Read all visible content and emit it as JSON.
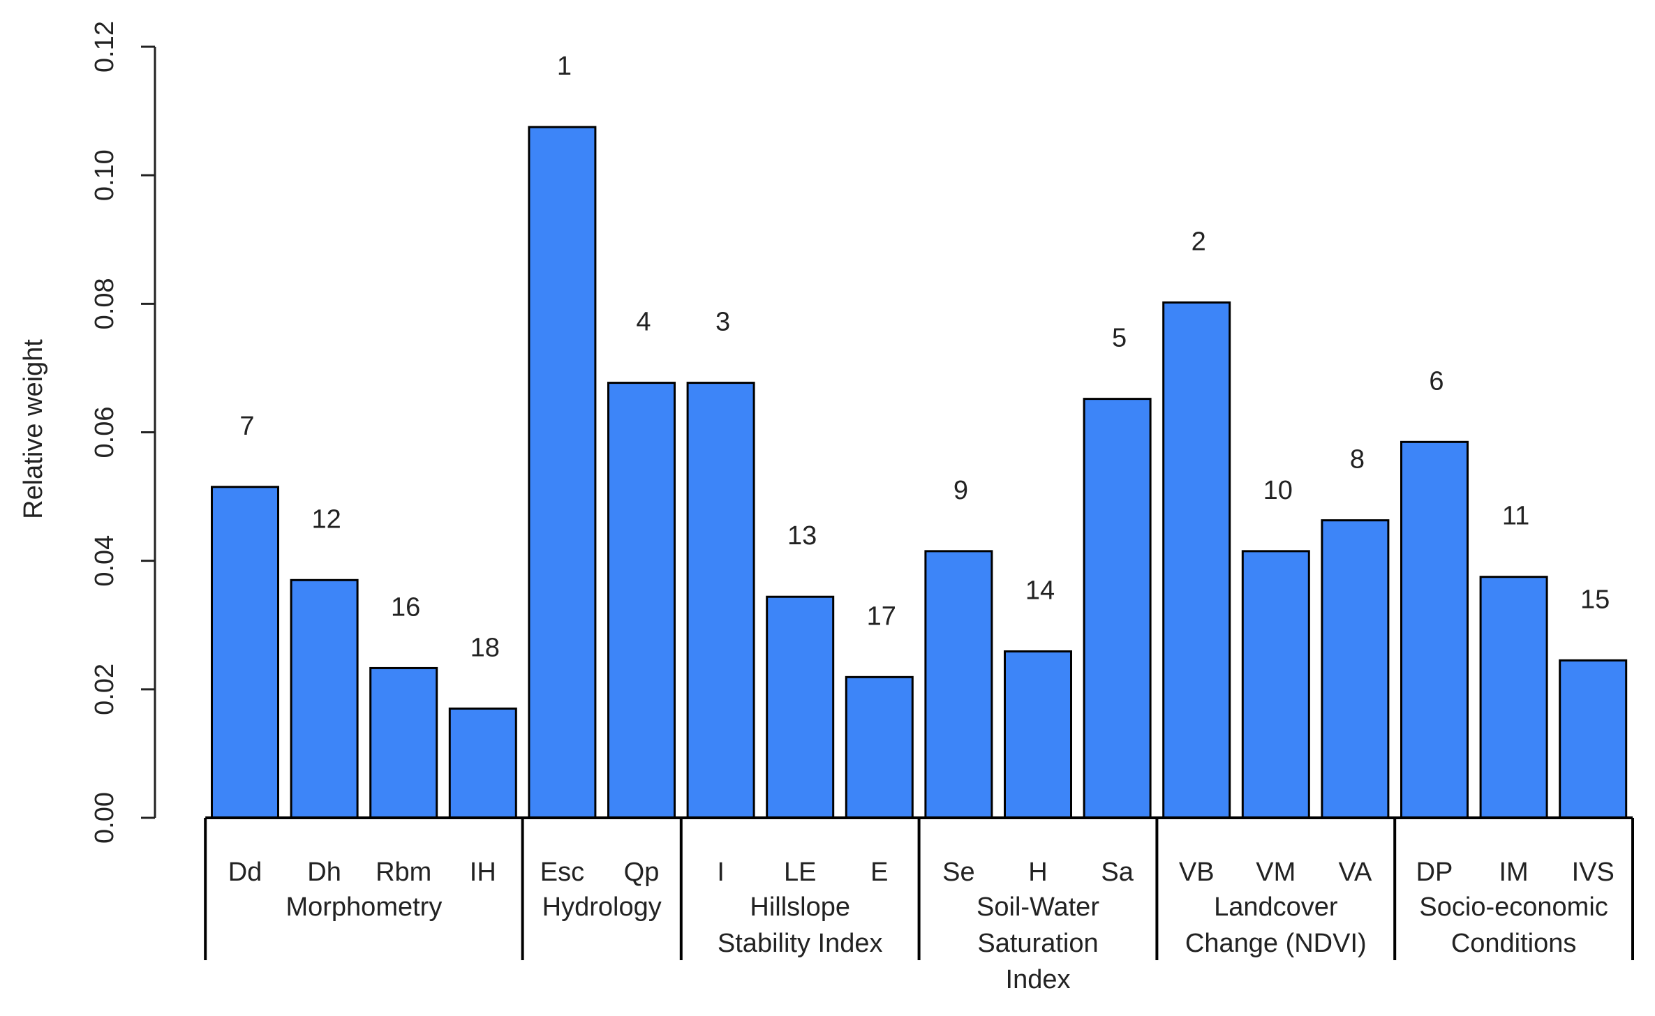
{
  "chart_data": {
    "type": "bar",
    "ylabel": "Relative weight",
    "ylim": [
      0,
      0.12
    ],
    "yticks": [
      "0.00",
      "0.02",
      "0.04",
      "0.06",
      "0.08",
      "0.10",
      "0.12"
    ],
    "bar_color": "#3d85f8",
    "categories": [
      "Dd",
      "Dh",
      "Rbm",
      "IH",
      "Esc",
      "Qp",
      "I",
      "LE",
      "E",
      "Se",
      "H",
      "Sa",
      "VB",
      "VM",
      "VA",
      "DP",
      "IM",
      "IVS"
    ],
    "values": [
      0.0515,
      0.037,
      0.0233,
      0.017,
      0.1075,
      0.0677,
      0.0677,
      0.0344,
      0.0219,
      0.0415,
      0.0259,
      0.0652,
      0.0802,
      0.0415,
      0.0463,
      0.0585,
      0.0375,
      0.0245
    ],
    "ranks": [
      "7",
      "12",
      "16",
      "18",
      "1",
      "4",
      "3",
      "13",
      "17",
      "9",
      "14",
      "5",
      "2",
      "10",
      "8",
      "6",
      "11",
      "15"
    ],
    "groups": [
      {
        "lines": [
          "Morphometry"
        ],
        "start": 0,
        "end": 3
      },
      {
        "lines": [
          "Hydrology"
        ],
        "start": 4,
        "end": 5
      },
      {
        "lines": [
          "Hillslope",
          "Stability Index"
        ],
        "start": 6,
        "end": 8
      },
      {
        "lines": [
          "Soil-Water",
          "Saturation",
          "Index"
        ],
        "start": 9,
        "end": 11
      },
      {
        "lines": [
          "Landcover",
          "Change (NDVI)"
        ],
        "start": 12,
        "end": 14
      },
      {
        "lines": [
          "Socio-economic",
          "Conditions"
        ],
        "start": 15,
        "end": 17
      }
    ]
  }
}
